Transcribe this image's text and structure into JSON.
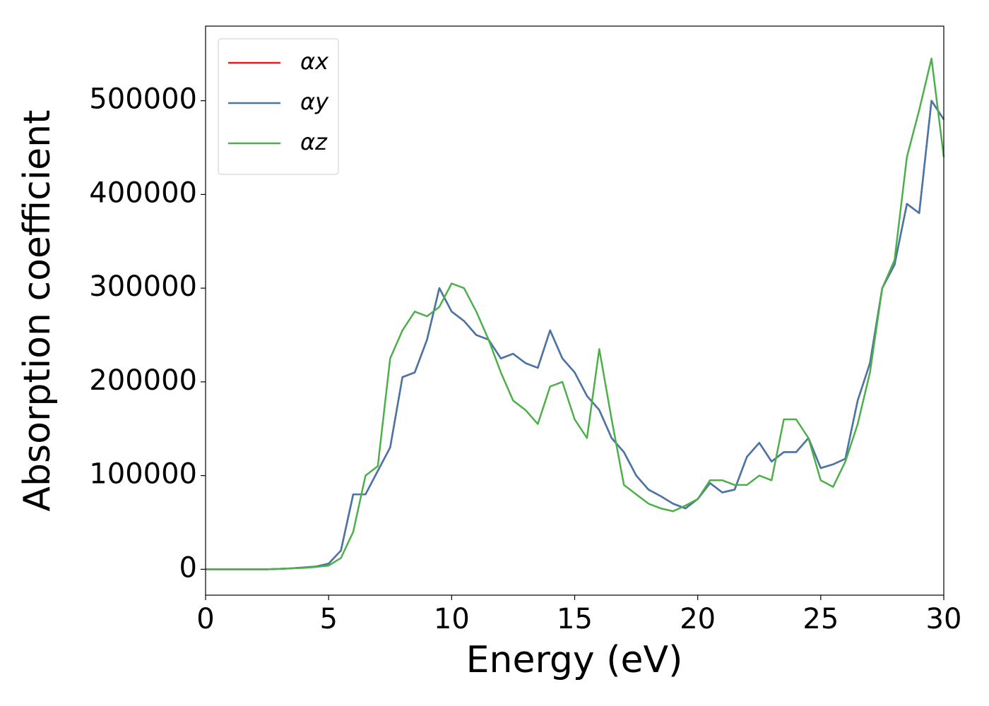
{
  "chart_data": {
    "type": "line",
    "x_label": "Energy (eV)",
    "y_label": "Absorption coefficient",
    "x": [
      0,
      0.5,
      1,
      1.5,
      2,
      2.5,
      3,
      3.5,
      4,
      4.5,
      5,
      5.5,
      6,
      6.5,
      7,
      7.5,
      8,
      8.5,
      9,
      9.5,
      10,
      10.5,
      11,
      11.5,
      12,
      12.5,
      13,
      13.5,
      14,
      14.5,
      15,
      15.5,
      16,
      16.5,
      17,
      17.5,
      18,
      18.5,
      19,
      19.5,
      20,
      20.5,
      21,
      21.5,
      22,
      22.5,
      23,
      23.5,
      24,
      24.5,
      25,
      25.5,
      26,
      26.5,
      27,
      27.5,
      28,
      28.5,
      29,
      29.5,
      30
    ],
    "series": [
      {
        "name": "αx",
        "color": "#e41a1c",
        "values": [
          0,
          0,
          0,
          0,
          0,
          0,
          500,
          1000,
          2000,
          3000,
          6000,
          20000,
          80000,
          80000,
          105000,
          130000,
          205000,
          210000,
          245000,
          300000,
          275000,
          265000,
          250000,
          245000,
          225000,
          230000,
          220000,
          215000,
          255000,
          225000,
          210000,
          185000,
          170000,
          140000,
          125000,
          100000,
          85000,
          78000,
          70000,
          65000,
          75000,
          92000,
          82000,
          85000,
          120000,
          135000,
          115000,
          125000,
          125000,
          140000,
          108000,
          112000,
          118000,
          180000,
          220000,
          300000,
          325000,
          390000,
          380000,
          500000,
          480000
        ]
      },
      {
        "name": "αy",
        "color": "#4477aa",
        "values": [
          0,
          0,
          0,
          0,
          0,
          0,
          500,
          1000,
          2000,
          3000,
          6000,
          20000,
          80000,
          80000,
          105000,
          130000,
          205000,
          210000,
          245000,
          300000,
          275000,
          265000,
          250000,
          245000,
          225000,
          230000,
          220000,
          215000,
          255000,
          225000,
          210000,
          185000,
          170000,
          140000,
          125000,
          100000,
          85000,
          78000,
          70000,
          65000,
          75000,
          92000,
          82000,
          85000,
          120000,
          135000,
          115000,
          125000,
          125000,
          140000,
          108000,
          112000,
          118000,
          180000,
          220000,
          300000,
          325000,
          390000,
          380000,
          500000,
          480000
        ]
      },
      {
        "name": "αz",
        "color": "#4daf4a",
        "values": [
          0,
          0,
          0,
          0,
          0,
          0,
          500,
          1000,
          1500,
          2500,
          4000,
          12000,
          40000,
          100000,
          110000,
          225000,
          255000,
          275000,
          270000,
          280000,
          305000,
          300000,
          275000,
          245000,
          210000,
          180000,
          170000,
          155000,
          195000,
          200000,
          160000,
          140000,
          235000,
          160000,
          90000,
          80000,
          70000,
          65000,
          62000,
          68000,
          75000,
          95000,
          95000,
          90000,
          90000,
          100000,
          95000,
          160000,
          160000,
          140000,
          95000,
          88000,
          115000,
          155000,
          210000,
          300000,
          330000,
          440000,
          490000,
          545000,
          440000
        ]
      }
    ],
    "xlim": [
      0,
      30
    ],
    "xticks": [
      0,
      5,
      10,
      15,
      20,
      25,
      30
    ],
    "ylim": [
      -27600,
      579600
    ],
    "yticks": [
      0,
      100000,
      200000,
      300000,
      400000,
      500000
    ],
    "legend": "upper left"
  }
}
